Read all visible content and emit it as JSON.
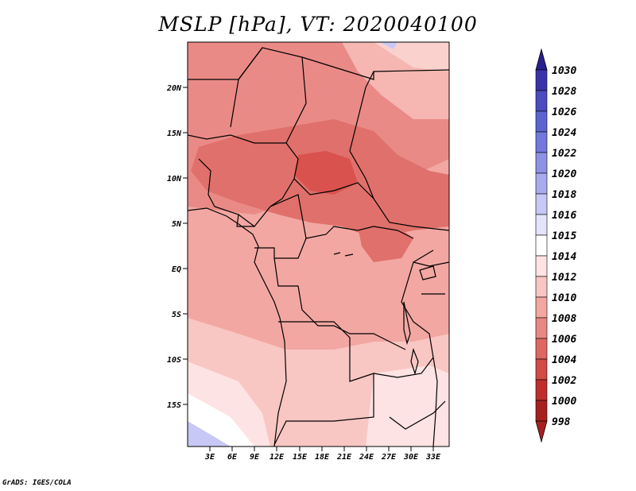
{
  "title": "MSLP [hPa], VT: 2020040100",
  "footer": "GrADS: IGES/COLA",
  "map": {
    "region": "Central Africa",
    "lon_range": [
      0,
      35
    ],
    "lat_range": [
      -20,
      25
    ],
    "lon_ticks": [
      "3E",
      "6E",
      "9E",
      "12E",
      "15E",
      "18E",
      "21E",
      "24E",
      "27E",
      "30E",
      "33E"
    ],
    "lat_ticks": [
      "20N",
      "15N",
      "10N",
      "5N",
      "EQ",
      "5S",
      "10S",
      "15S"
    ]
  },
  "colorbar": {
    "levels": [
      "1030",
      "1028",
      "1026",
      "1024",
      "1022",
      "1020",
      "1018",
      "1016",
      "1015",
      "1014",
      "1012",
      "1010",
      "1008",
      "1006",
      "1004",
      "1002",
      "1000",
      "998"
    ],
    "colors": [
      "#2a1f8f",
      "#3a33a8",
      "#4a4cc0",
      "#5d63d0",
      "#7478dc",
      "#8e92e6",
      "#a9abef",
      "#c7c8f6",
      "#e3e3fb",
      "#ffffff",
      "#fde3e3",
      "#f8c6c3",
      "#f2a7a2",
      "#e98882",
      "#df6761",
      "#d24b45",
      "#c02e2c",
      "#a8201e"
    ]
  }
}
